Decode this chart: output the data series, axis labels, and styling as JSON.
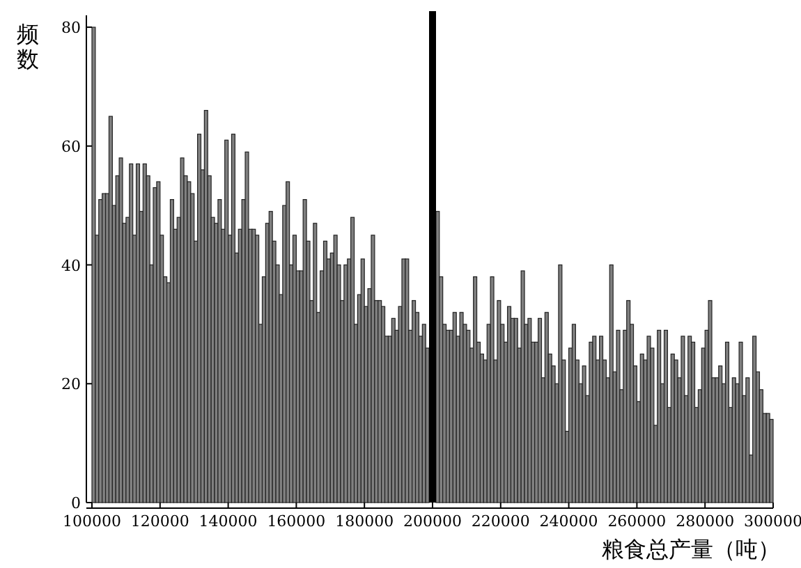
{
  "chart_data": {
    "type": "histogram",
    "xlabel": "粮食总产量（吨）",
    "ylabel": "频数",
    "bins": [
      100000,
      101000,
      102000,
      103000,
      104000,
      105000,
      106000,
      107000,
      108000,
      109000,
      110000,
      111000,
      112000,
      113000,
      114000,
      115000,
      116000,
      117000,
      118000,
      119000,
      120000,
      121000,
      122000,
      123000,
      124000,
      125000,
      126000,
      127000,
      128000,
      129000,
      130000,
      131000,
      132000,
      133000,
      134000,
      135000,
      136000,
      137000,
      138000,
      139000,
      140000,
      141000,
      142000,
      143000,
      144000,
      145000,
      146000,
      147000,
      148000,
      149000,
      150000,
      151000,
      152000,
      153000,
      154000,
      155000,
      156000,
      157000,
      158000,
      159000,
      160000,
      161000,
      162000,
      163000,
      164000,
      165000,
      166000,
      167000,
      168000,
      169000,
      170000,
      171000,
      172000,
      173000,
      174000,
      175000,
      176000,
      177000,
      178000,
      179000,
      180000,
      181000,
      182000,
      183000,
      184000,
      185000,
      186000,
      187000,
      188000,
      189000,
      190000,
      191000,
      192000,
      193000,
      194000,
      195000,
      196000,
      197000,
      198000,
      199000,
      200000,
      201000,
      202000,
      203000,
      204000,
      205000,
      206000,
      207000,
      208000,
      209000,
      210000,
      211000,
      212000,
      213000,
      214000,
      215000,
      216000,
      217000,
      218000,
      219000,
      220000,
      221000,
      222000,
      223000,
      224000,
      225000,
      226000,
      227000,
      228000,
      229000,
      230000,
      231000,
      232000,
      233000,
      234000,
      235000,
      236000,
      237000,
      238000,
      239000,
      240000,
      241000,
      242000,
      243000,
      244000,
      245000,
      246000,
      247000,
      248000,
      249000,
      250000,
      251000,
      252000,
      253000,
      254000,
      255000,
      256000,
      257000,
      258000,
      259000,
      260000,
      261000,
      262000,
      263000,
      264000,
      265000,
      266000,
      267000,
      268000,
      269000,
      270000,
      271000,
      272000,
      273000,
      274000,
      275000,
      276000,
      277000,
      278000,
      279000,
      280000,
      281000,
      282000,
      283000,
      284000,
      285000,
      286000,
      287000,
      288000,
      289000,
      290000,
      291000,
      292000,
      293000,
      294000,
      295000,
      296000,
      297000,
      298000,
      299000,
      300000
    ],
    "values": [
      80,
      45,
      51,
      52,
      52,
      65,
      50,
      55,
      58,
      47,
      48,
      57,
      45,
      57,
      49,
      57,
      55,
      40,
      53,
      54,
      45,
      38,
      37,
      51,
      46,
      48,
      58,
      55,
      54,
      52,
      44,
      62,
      56,
      66,
      55,
      48,
      47,
      51,
      46,
      61,
      45,
      62,
      42,
      46,
      51,
      59,
      46,
      46,
      45,
      30,
      38,
      47,
      49,
      44,
      40,
      35,
      50,
      54,
      40,
      45,
      39,
      39,
      51,
      44,
      34,
      47,
      32,
      39,
      44,
      41,
      42,
      45,
      40,
      34,
      40,
      41,
      48,
      30,
      35,
      41,
      33,
      36,
      45,
      34,
      34,
      33,
      28,
      28,
      31,
      29,
      33,
      41,
      41,
      29,
      34,
      32,
      28,
      30,
      26,
      null,
      null,
      49,
      38,
      30,
      29,
      29,
      32,
      28,
      32,
      30,
      29,
      26,
      38,
      27,
      25,
      24,
      30,
      38,
      24,
      34,
      30,
      27,
      33,
      31,
      31,
      26,
      39,
      30,
      31,
      27,
      27,
      31,
      21,
      32,
      25,
      23,
      20,
      40,
      24,
      12,
      26,
      30,
      24,
      20,
      23,
      18,
      27,
      28,
      24,
      28,
      24,
      21,
      40,
      22,
      29,
      19,
      29,
      34,
      30,
      23,
      17,
      25,
      24,
      28,
      26,
      13,
      29,
      20,
      29,
      16,
      25,
      24,
      21,
      28,
      18,
      28,
      27,
      16,
      19,
      26,
      29,
      34,
      21,
      21,
      23,
      20,
      27,
      16,
      21,
      20,
      27,
      18,
      21,
      8,
      28,
      22,
      19,
      15,
      15,
      14
    ],
    "color": "#808080",
    "xlim": [
      100000,
      300000
    ],
    "ylim": [
      0,
      82
    ],
    "xticks": [
      100000,
      120000,
      140000,
      160000,
      180000,
      200000,
      220000,
      240000,
      260000,
      280000,
      300000
    ],
    "yticks": [
      0,
      20,
      40,
      60,
      80
    ],
    "ref_lines": [
      {
        "axis": "x",
        "value": 200000,
        "color": "#000000"
      }
    ],
    "grid": false
  }
}
